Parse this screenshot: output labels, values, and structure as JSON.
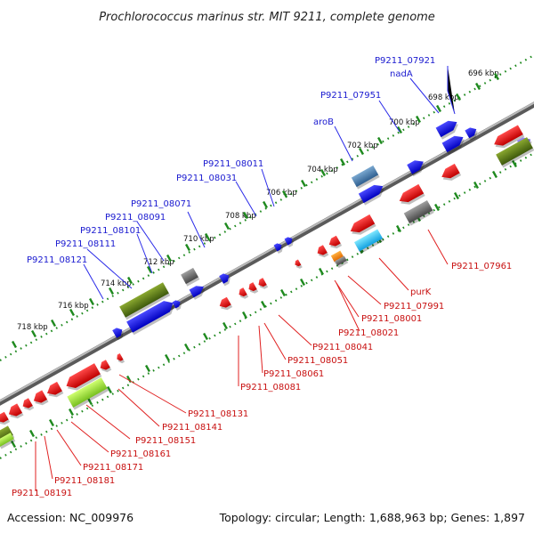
{
  "title": "Prochlorococcus marinus str. MIT 9211, complete genome",
  "footer": {
    "accession": "Accession: NC_009976",
    "summary": "Topology: circular; Length: 1,688,963 bp; Genes: 1,897"
  },
  "colors": {
    "backbone": "#8a8a8a",
    "tick": "#1f8a1f",
    "forward_gene": "#1010e0",
    "reverse_gene": "#e01010",
    "top_label": "#1a1ad0",
    "bottom_label": "#c81010",
    "leader": "#2a2ae8",
    "leader_red": "#e02020"
  },
  "ticks": [
    "696 kbp",
    "698 kbp",
    "700 kbp",
    "702 kbp",
    "704 kbp",
    "706 kbp",
    "708 kbp",
    "710 kbp",
    "712 kbp",
    "714 kbp",
    "716 kbp",
    "718 kbp"
  ],
  "top_labels": [
    "P9211_07921",
    "nadA",
    "P9211_07951",
    "aroB",
    "P9211_08011",
    "P9211_08031",
    "P9211_08071",
    "P9211_08091",
    "P9211_08101",
    "P9211_08111",
    "P9211_08121"
  ],
  "bottom_labels": [
    "P9211_07961",
    "purK",
    "P9211_07991",
    "P9211_08001",
    "P9211_08021",
    "P9211_08041",
    "P9211_08051",
    "P9211_08061",
    "P9211_08081",
    "P9211_08131",
    "P9211_08141",
    "P9211_08151",
    "P9211_08161",
    "P9211_08171",
    "P9211_08181",
    "P9211_08191"
  ]
}
